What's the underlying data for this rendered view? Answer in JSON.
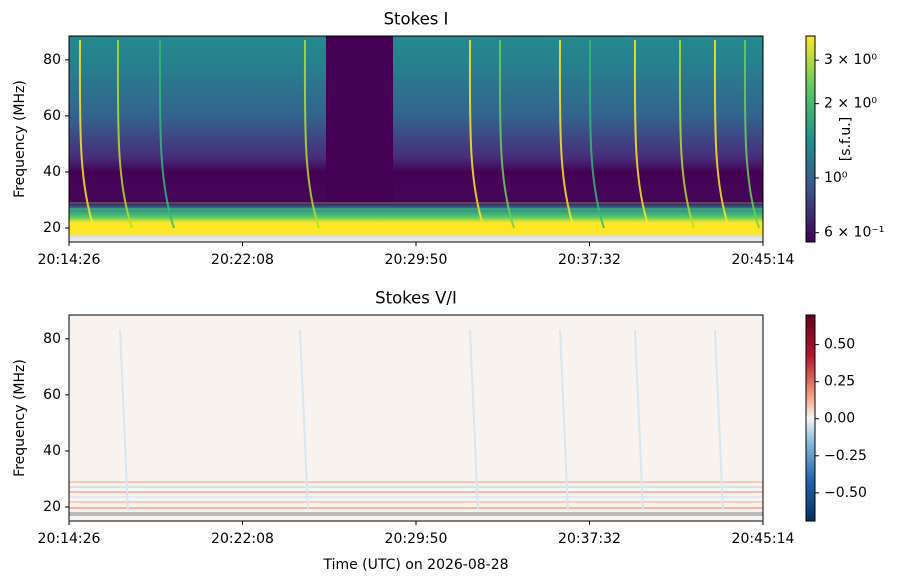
{
  "chart_data": [
    {
      "type": "heatmap",
      "title": "Stokes I",
      "y_label": "Frequency (MHz)",
      "ylim": [
        15,
        88.5
      ],
      "yticks": [
        20,
        40,
        60,
        80
      ],
      "xticks": [
        "20:14:26",
        "20:22:08",
        "20:29:50",
        "20:37:32",
        "20:45:14"
      ],
      "colorbar": {
        "label": "[s.f.u.]",
        "colormap": "viridis",
        "scale": "log",
        "lim": [
          0.55,
          3.76
        ],
        "ticks": [
          {
            "value": 3,
            "label": "3 × 10⁰"
          },
          {
            "value": 2,
            "label": "2 × 10⁰"
          },
          {
            "value": 1,
            "label": "10⁰"
          },
          {
            "value": 0.6,
            "label": "6 × 10⁻¹"
          }
        ]
      }
    },
    {
      "type": "heatmap",
      "title": "Stokes V/I",
      "y_label": "Frequency (MHz)",
      "x_label": "Time (UTC) on 2026-08-28",
      "ylim": [
        15,
        88.5
      ],
      "yticks": [
        20,
        40,
        60,
        80
      ],
      "xticks": [
        "20:14:26",
        "20:22:08",
        "20:29:50",
        "20:37:32",
        "20:45:14"
      ],
      "colorbar": {
        "colormap": "RdBu",
        "scale": "linear",
        "lim": [
          -0.69,
          0.7
        ],
        "ticks": [
          {
            "value": 0.5,
            "label": "0.50"
          },
          {
            "value": 0.25,
            "label": "0.25"
          },
          {
            "value": 0,
            "label": "0.00"
          },
          {
            "value": -0.25,
            "label": "−0.25"
          },
          {
            "value": -0.5,
            "label": "−0.50"
          }
        ]
      }
    }
  ]
}
